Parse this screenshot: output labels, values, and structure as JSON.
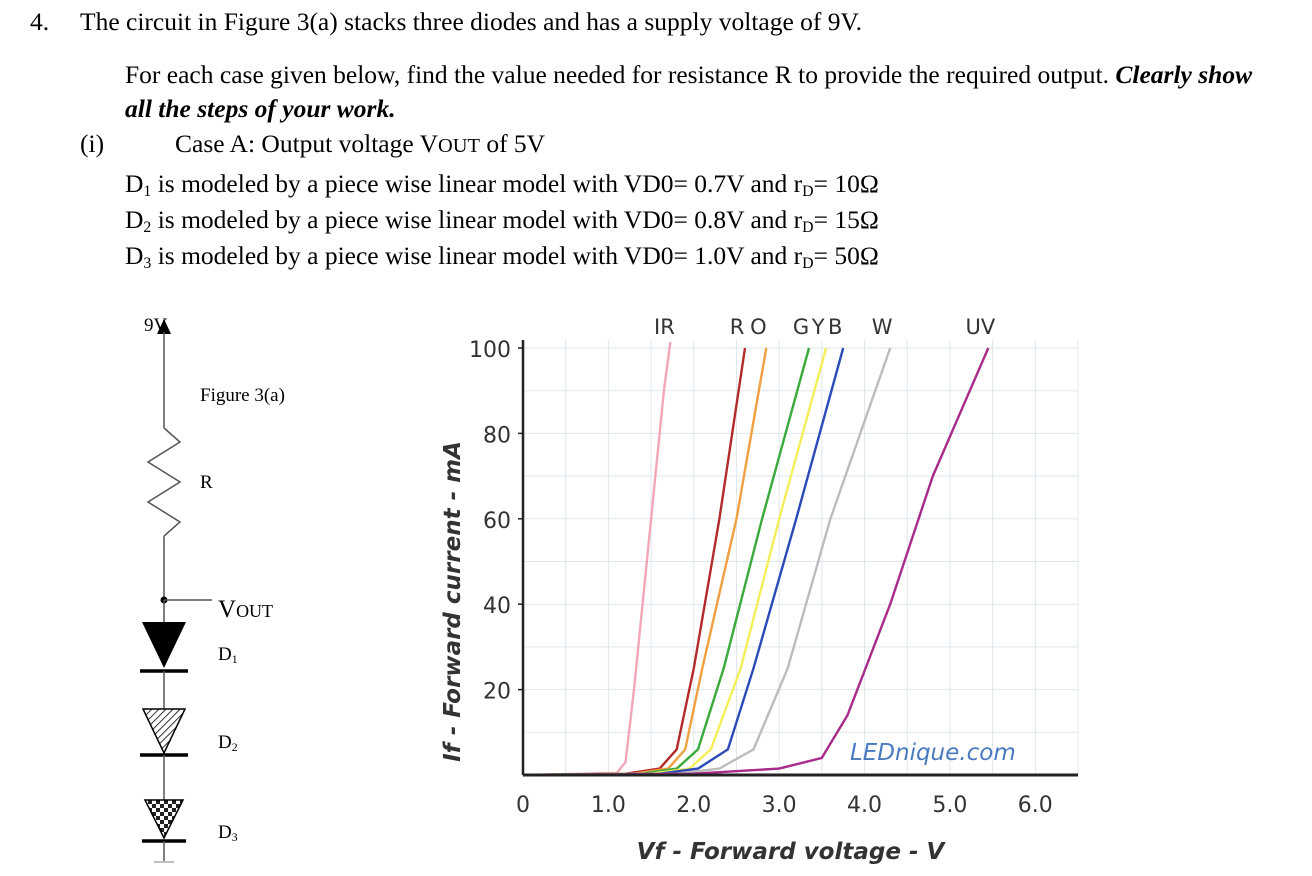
{
  "question": {
    "number": "4.",
    "text": "The circuit in Figure 3(a) stacks three diodes and has a supply voltage of 9V.",
    "instruction": "For each case given below, find the value needed for resistance R to provide the required output.",
    "emphasis": "Clearly show all the steps of your work.",
    "case_number": "(i)",
    "case_label": "Case A: Output voltage V",
    "case_sub": "OUT",
    "case_value": " of  5V",
    "diodes": [
      {
        "name": "D",
        "sub": "1",
        "text": " is modeled by a piece wise linear model with VD0= 0.7V and r",
        "rsub": "D",
        "rval": "= 10Ω"
      },
      {
        "name": "D",
        "sub": "2",
        "text": " is modeled by a piece wise linear model with VD0= 0.8V and r",
        "rsub": "D",
        "rval": "= 15Ω"
      },
      {
        "name": "D",
        "sub": "3",
        "text": " is modeled by a piece wise linear model with VD0= 1.0V and r",
        "rsub": "D",
        "rval": "= 50Ω"
      }
    ]
  },
  "figure": {
    "supply": "9V",
    "caption": "Figure 3(a)",
    "resistor": "R",
    "vout": "V",
    "vout_sub": "OUT",
    "d1": "D",
    "d1_sub": "1",
    "d2": "D",
    "d2_sub": "2",
    "d3": "D",
    "d3_sub": "3"
  },
  "chart_data": {
    "type": "line",
    "xlabel": "Vf - Forward voltage - V",
    "ylabel": "If - Forward current - mA",
    "watermark": "LEDnique.com",
    "xlim": [
      0,
      6.5
    ],
    "ylim": [
      0,
      100
    ],
    "xticks": [
      0,
      1.0,
      2.0,
      3.0,
      4.0,
      5.0,
      6.0
    ],
    "xtick_labels": [
      "0",
      "1.0",
      "2.0",
      "3.0",
      "4.0",
      "5.0",
      "6.0"
    ],
    "yticks": [
      20,
      40,
      60,
      80,
      100
    ],
    "ytick_labels": [
      "20",
      "40",
      "60",
      "80",
      "100"
    ],
    "grid": true,
    "series": [
      {
        "name": "IR",
        "color": "#f0a8b8",
        "points": [
          [
            0,
            0
          ],
          [
            1.1,
            0.5
          ],
          [
            1.2,
            3
          ],
          [
            1.3,
            20
          ],
          [
            1.5,
            60
          ],
          [
            1.65,
            90
          ],
          [
            1.75,
            105
          ]
        ]
      },
      {
        "name": "R",
        "color": "#b22a2a",
        "points": [
          [
            0,
            0
          ],
          [
            1.2,
            0.3
          ],
          [
            1.6,
            1.5
          ],
          [
            1.8,
            6
          ],
          [
            2.0,
            25
          ],
          [
            2.3,
            60
          ],
          [
            2.6,
            100
          ]
        ]
      },
      {
        "name": "O",
        "color": "#f0a040",
        "points": [
          [
            0,
            0
          ],
          [
            1.3,
            0.3
          ],
          [
            1.7,
            1.5
          ],
          [
            1.9,
            6
          ],
          [
            2.1,
            25
          ],
          [
            2.5,
            60
          ],
          [
            2.85,
            100
          ]
        ]
      },
      {
        "name": "G",
        "color": "#3aaa3a",
        "points": [
          [
            0,
            0
          ],
          [
            1.4,
            0.3
          ],
          [
            1.8,
            1.5
          ],
          [
            2.05,
            6
          ],
          [
            2.35,
            25
          ],
          [
            2.8,
            60
          ],
          [
            3.35,
            100
          ]
        ]
      },
      {
        "name": "Y",
        "color": "#f2ef58",
        "points": [
          [
            0,
            0
          ],
          [
            1.5,
            0.3
          ],
          [
            1.95,
            1.5
          ],
          [
            2.2,
            6
          ],
          [
            2.55,
            25
          ],
          [
            3.0,
            60
          ],
          [
            3.55,
            100
          ]
        ]
      },
      {
        "name": "B",
        "color": "#2a4ab8",
        "points": [
          [
            0,
            0
          ],
          [
            1.6,
            0.3
          ],
          [
            2.05,
            1.5
          ],
          [
            2.4,
            6
          ],
          [
            2.7,
            25
          ],
          [
            3.2,
            60
          ],
          [
            3.75,
            100
          ]
        ]
      },
      {
        "name": "W",
        "color": "#bcbcbc",
        "points": [
          [
            0,
            0
          ],
          [
            1.8,
            0.3
          ],
          [
            2.3,
            1.5
          ],
          [
            2.7,
            6
          ],
          [
            3.1,
            25
          ],
          [
            3.6,
            60
          ],
          [
            4.3,
            100
          ]
        ]
      },
      {
        "name": "UV",
        "color": "#a82a8a",
        "points": [
          [
            0,
            0
          ],
          [
            2.0,
            0.3
          ],
          [
            3.0,
            1.5
          ],
          [
            3.5,
            4
          ],
          [
            3.8,
            14
          ],
          [
            4.3,
            40
          ],
          [
            4.8,
            70
          ],
          [
            5.45,
            100
          ]
        ]
      }
    ]
  }
}
